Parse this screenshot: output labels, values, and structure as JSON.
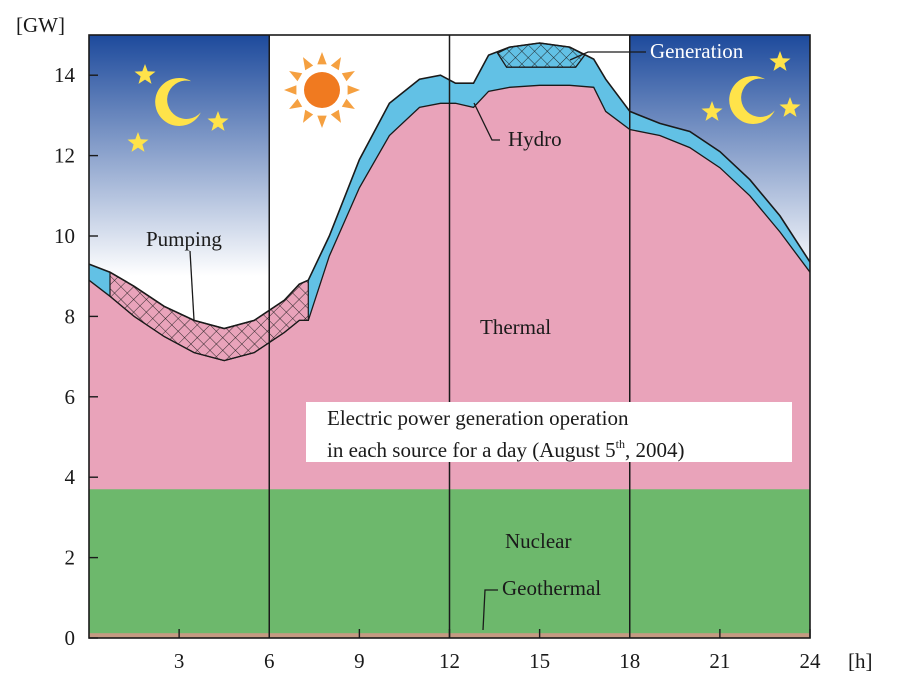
{
  "chart_data": {
    "type": "area",
    "title_lines": [
      "Electric power generation operation",
      "in each source for a day (August 5",
      "th",
      ", 2004)"
    ],
    "ylabel": "[GW]",
    "xlabel": "[h]",
    "xlim": [
      0,
      24
    ],
    "ylim": [
      0,
      15
    ],
    "x_ticks": [
      3,
      6,
      9,
      12,
      15,
      18,
      21,
      24
    ],
    "y_ticks": [
      0,
      2,
      4,
      6,
      8,
      10,
      12,
      14
    ],
    "vertical_lines": [
      6,
      12,
      18
    ],
    "series": [
      {
        "name": "Geothermal",
        "color": "#c49a82",
        "points": [
          [
            0,
            0.12
          ],
          [
            24,
            0.12
          ]
        ]
      },
      {
        "name": "Nuclear",
        "color": "#6db86c",
        "points": [
          [
            0,
            3.7
          ],
          [
            24,
            3.7
          ]
        ]
      },
      {
        "name": "Thermal",
        "color": "#e9a3ba",
        "points": [
          [
            0,
            8.9
          ],
          [
            0.7,
            8.5
          ],
          [
            1.5,
            8.0
          ],
          [
            2.5,
            7.5
          ],
          [
            3.5,
            7.1
          ],
          [
            4.5,
            6.9
          ],
          [
            5.5,
            7.1
          ],
          [
            6.5,
            7.6
          ],
          [
            7.0,
            7.9
          ],
          [
            7.3,
            7.9
          ],
          [
            8.0,
            9.5
          ],
          [
            9.0,
            11.2
          ],
          [
            10.0,
            12.5
          ],
          [
            11.0,
            13.2
          ],
          [
            11.7,
            13.3
          ],
          [
            12.2,
            13.3
          ],
          [
            12.8,
            13.2
          ],
          [
            13.3,
            13.6
          ],
          [
            14.0,
            13.7
          ],
          [
            15.0,
            13.75
          ],
          [
            16.0,
            13.75
          ],
          [
            16.8,
            13.7
          ],
          [
            17.2,
            13.1
          ],
          [
            18.0,
            12.65
          ],
          [
            19.0,
            12.5
          ],
          [
            20.0,
            12.2
          ],
          [
            21.0,
            11.7
          ],
          [
            22.0,
            11.0
          ],
          [
            23.0,
            10.1
          ],
          [
            24.0,
            9.1
          ]
        ]
      },
      {
        "name": "Pumping",
        "color": "#9c2e4a",
        "points": [
          [
            0.7,
            9.1
          ],
          [
            1.5,
            8.75
          ],
          [
            2.5,
            8.25
          ],
          [
            3.5,
            7.9
          ],
          [
            4.5,
            7.7
          ],
          [
            5.5,
            7.9
          ],
          [
            6.5,
            8.4
          ],
          [
            7.0,
            8.8
          ],
          [
            7.3,
            8.9
          ]
        ]
      },
      {
        "name": "Hydro",
        "color": "#62c1e5",
        "points": [
          [
            0,
            9.3
          ],
          [
            0.7,
            9.1
          ],
          [
            1.5,
            8.75
          ],
          [
            2.5,
            8.25
          ],
          [
            3.5,
            7.9
          ],
          [
            4.5,
            7.7
          ],
          [
            5.5,
            7.9
          ],
          [
            6.5,
            8.4
          ],
          [
            7.0,
            8.8
          ],
          [
            7.3,
            8.9
          ],
          [
            8.0,
            10.0
          ],
          [
            9.0,
            11.9
          ],
          [
            10.0,
            13.3
          ],
          [
            11.0,
            13.9
          ],
          [
            11.7,
            14.0
          ],
          [
            12.2,
            13.8
          ],
          [
            12.8,
            13.8
          ],
          [
            13.3,
            14.5
          ],
          [
            14.0,
            14.7
          ],
          [
            15.0,
            14.8
          ],
          [
            16.0,
            14.7
          ],
          [
            16.8,
            14.4
          ],
          [
            17.2,
            13.9
          ],
          [
            18.0,
            13.1
          ],
          [
            19.0,
            12.8
          ],
          [
            20.0,
            12.6
          ],
          [
            21.0,
            12.1
          ],
          [
            22.0,
            11.4
          ],
          [
            23.0,
            10.5
          ],
          [
            24.0,
            9.35
          ]
        ]
      },
      {
        "name": "Generation",
        "color": "#62c1e5",
        "points": [
          [
            13.6,
            14.2
          ],
          [
            16.5,
            14.2
          ]
        ]
      }
    ],
    "annotations": [
      "Pumping",
      "Hydro",
      "Generation",
      "Thermal",
      "Nuclear",
      "Geothermal"
    ],
    "night_sky": {
      "ranges": [
        [
          0,
          6
        ],
        [
          18,
          24
        ]
      ],
      "top_color": "#1d4a9c",
      "bottom_color": "#ffffff"
    },
    "icons": [
      "moon-icon",
      "star-icon",
      "sun-icon"
    ],
    "colors": {
      "sun": "#f07a20",
      "sun_rays": "#f5a040",
      "star": "#ffe34a",
      "moon": "#ffe34a",
      "axis": "#1a1a1a"
    }
  }
}
